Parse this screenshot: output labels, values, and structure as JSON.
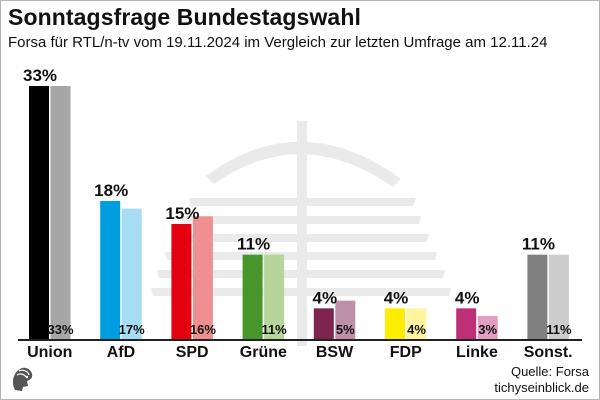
{
  "title": "Sonntagsfrage Bundestagswahl",
  "subtitle": "Forsa für RTL/n-tv vom 19.11.2024 im Vergleich zur letzten Umfrage am 12.11.24",
  "source": "Quelle: Forsa",
  "site": "tichyseinblick.de",
  "chart_data": {
    "type": "bar",
    "categories": [
      "Union",
      "AfD",
      "SPD",
      "Grüne",
      "BSW",
      "FDP",
      "Linke",
      "Sonst."
    ],
    "series": [
      {
        "values": [
          33,
          18,
          15,
          11,
          4,
          4,
          4,
          11
        ],
        "labels": [
          "33%",
          "18%",
          "15%",
          "11%",
          "4%",
          "4%",
          "4%",
          "11%"
        ]
      },
      {
        "values": [
          33,
          17,
          16,
          11,
          5,
          4,
          3,
          11
        ],
        "labels": [
          "33%",
          "17%",
          "16%",
          "11%",
          "5%",
          "4%",
          "3%",
          "11%"
        ]
      }
    ],
    "colors_current": [
      "#000000",
      "#009ee0",
      "#e3000f",
      "#46962b",
      "#7d254f",
      "#ffed00",
      "#be3075",
      "#808080"
    ],
    "colors_previous": [
      "#a6a6a6",
      "#a5ddf5",
      "#f08f8f",
      "#b6d59a",
      "#be90a8",
      "#fff4a0",
      "#e39dc0",
      "#cccccc"
    ],
    "ylim": [
      0,
      33
    ]
  }
}
